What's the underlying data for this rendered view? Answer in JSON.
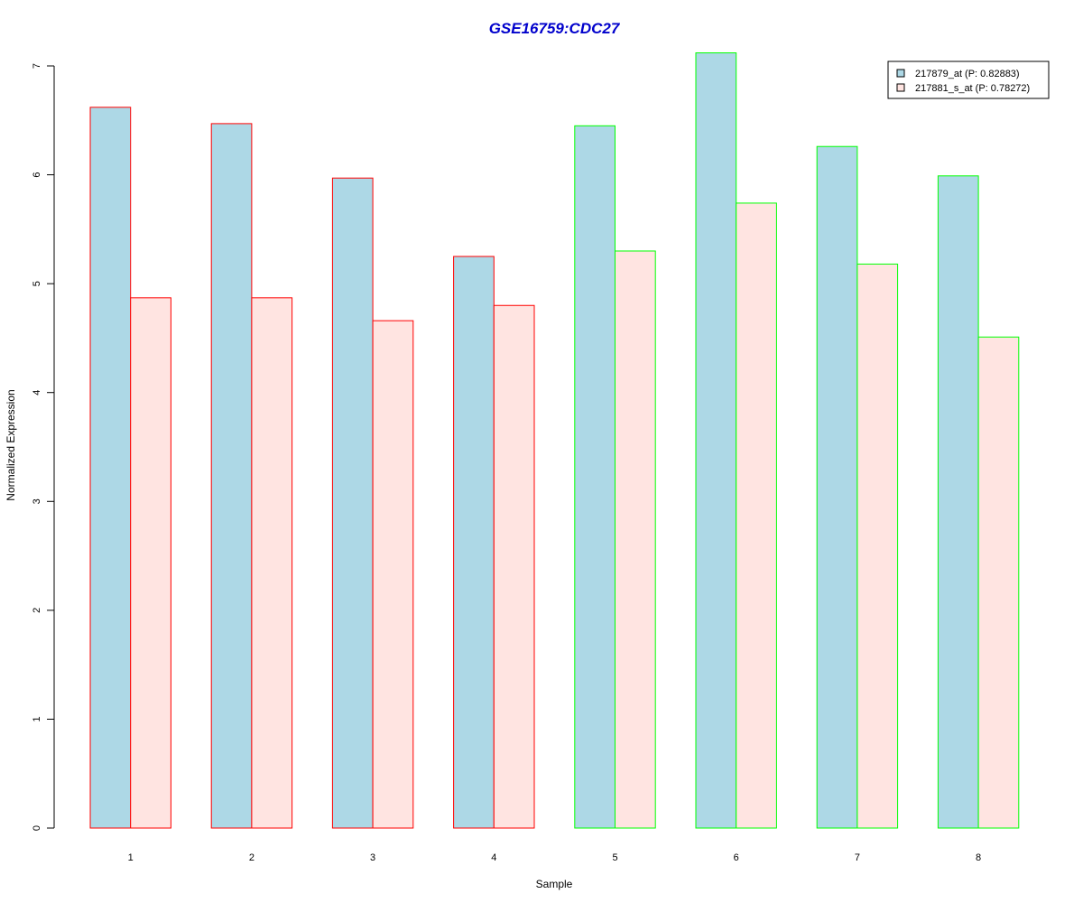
{
  "chart_data": {
    "type": "bar",
    "title": "GSE16759:CDC27",
    "title_color": "#0000CC",
    "xlabel": "Sample",
    "ylabel": "Normalized Expression",
    "categories": [
      "1",
      "2",
      "3",
      "4",
      "5",
      "6",
      "7",
      "8"
    ],
    "ylim": [
      0,
      7
    ],
    "yticks": [
      0,
      1,
      2,
      3,
      4,
      5,
      6,
      7
    ],
    "grid": false,
    "legend_position": "top-right",
    "series": [
      {
        "name": "217879_at (P: 0.82883)",
        "fill": "#ADD8E6",
        "values": [
          6.62,
          6.47,
          5.97,
          5.25,
          6.45,
          7.12,
          6.26,
          5.99
        ]
      },
      {
        "name": "217881_s_at (P: 0.78272)",
        "fill": "#FFE4E1",
        "values": [
          4.87,
          4.87,
          4.66,
          4.8,
          5.3,
          5.74,
          5.18,
          4.51
        ]
      }
    ],
    "group_border_colors": [
      "#FF0000",
      "#FF0000",
      "#FF0000",
      "#FF0000",
      "#00FF00",
      "#00FF00",
      "#00FF00",
      "#00FF00"
    ]
  }
}
